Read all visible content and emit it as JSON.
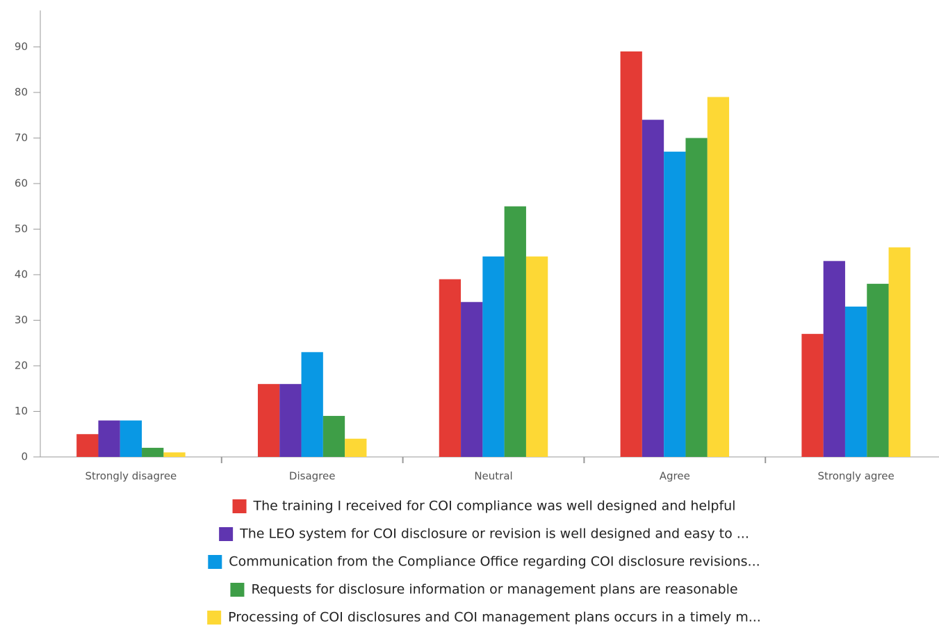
{
  "chart_data": {
    "type": "bar",
    "categories": [
      "Strongly disagree",
      "Disagree",
      "Neutral",
      "Agree",
      "Strongly agree"
    ],
    "series": [
      {
        "name": "The training I received for COI compliance was well designed and helpful",
        "color": "#e43b35",
        "values": [
          5,
          16,
          39,
          89,
          27
        ]
      },
      {
        "name": "The LEO system for COI disclosure or revision is well designed and easy to ...",
        "color": "#5f35b0",
        "values": [
          8,
          16,
          34,
          74,
          43
        ]
      },
      {
        "name": "Communication from the Compliance Office regarding COI disclosure revisions...",
        "color": "#0998e4",
        "values": [
          8,
          23,
          44,
          67,
          33
        ]
      },
      {
        "name": "Requests for disclosure information or management plans are reasonable",
        "color": "#3e9e47",
        "values": [
          2,
          9,
          55,
          70,
          38
        ]
      },
      {
        "name": "Processing of COI disclosures and COI management plans occurs in a timely m...",
        "color": "#fdd835",
        "values": [
          1,
          4,
          44,
          79,
          46
        ]
      }
    ],
    "ylim": [
      0,
      98
    ],
    "yticks": [
      0,
      10,
      20,
      30,
      40,
      50,
      60,
      70,
      80,
      90
    ],
    "grid": false,
    "legend": "bottom"
  }
}
